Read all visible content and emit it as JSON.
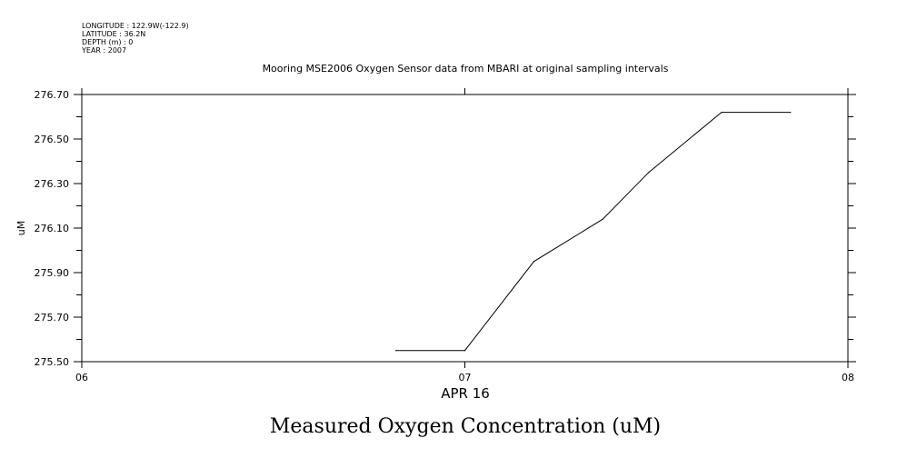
{
  "header": {
    "longitude": "LONGITUDE : 122.9W(-122.9)",
    "latitude": "LATITUDE : 36.2N",
    "depth": "DEPTH (m) : 0",
    "year": "YEAR : 2007"
  },
  "bottom_caption": "Measured Oxygen Concentration (uM)",
  "chart_data": {
    "type": "line",
    "title": "Mooring MSE2006 Oxygen Sensor data from MBARI at original sampling intervals",
    "xlabel": "APR 16",
    "ylabel": "uM",
    "x_ticks": [
      "06",
      "07",
      "08"
    ],
    "x_tick_values": [
      6,
      7,
      8
    ],
    "y_ticks": [
      "275.50",
      "275.70",
      "275.90",
      "276.10",
      "276.30",
      "276.50",
      "276.70"
    ],
    "xlim": [
      6,
      8
    ],
    "ylim": [
      275.5,
      276.7
    ],
    "grid": false,
    "series": [
      {
        "x": [
          6.82,
          7.0,
          7.18,
          7.36,
          7.48,
          7.67,
          7.85
        ],
        "y": [
          275.55,
          275.55,
          275.95,
          276.14,
          276.35,
          276.62,
          276.62
        ],
        "color": "#000000"
      }
    ]
  }
}
